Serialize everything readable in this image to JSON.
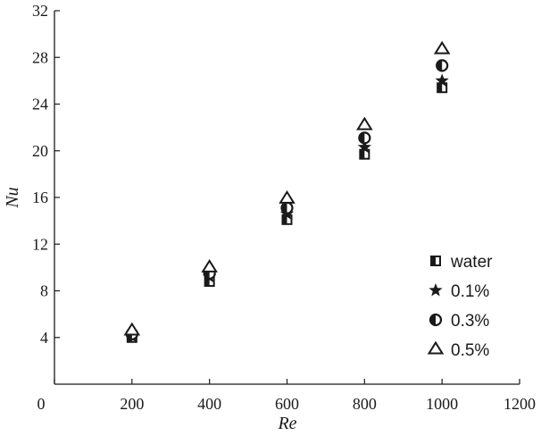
{
  "chart_data": {
    "type": "scatter",
    "title": "",
    "xlabel": "Re",
    "ylabel": "Nu",
    "xlim": [
      0,
      1200
    ],
    "ylim": [
      0,
      32
    ],
    "xticks": [
      "0",
      "200",
      "400",
      "600",
      "800",
      "1000",
      "1200"
    ],
    "yticks": [
      "4",
      "8",
      "12",
      "16",
      "20",
      "24",
      "28",
      "32"
    ],
    "grid": false,
    "legend_position": "lower-right",
    "x": [
      200,
      400,
      600,
      800,
      1000
    ],
    "series": [
      {
        "name": "water",
        "marker": "half-filled-square",
        "values": [
          4.0,
          8.8,
          14.1,
          19.7,
          25.4
        ]
      },
      {
        "name": "0.1%",
        "marker": "star",
        "values": [
          4.1,
          9.2,
          14.6,
          20.3,
          26.0
        ]
      },
      {
        "name": "0.3%",
        "marker": "half-filled-circle",
        "values": [
          4.3,
          9.5,
          15.1,
          21.1,
          27.3
        ]
      },
      {
        "name": "0.5%",
        "marker": "triangle",
        "values": [
          4.6,
          10.0,
          15.9,
          22.2,
          28.7
        ]
      }
    ],
    "color": "#1a1a1a"
  }
}
